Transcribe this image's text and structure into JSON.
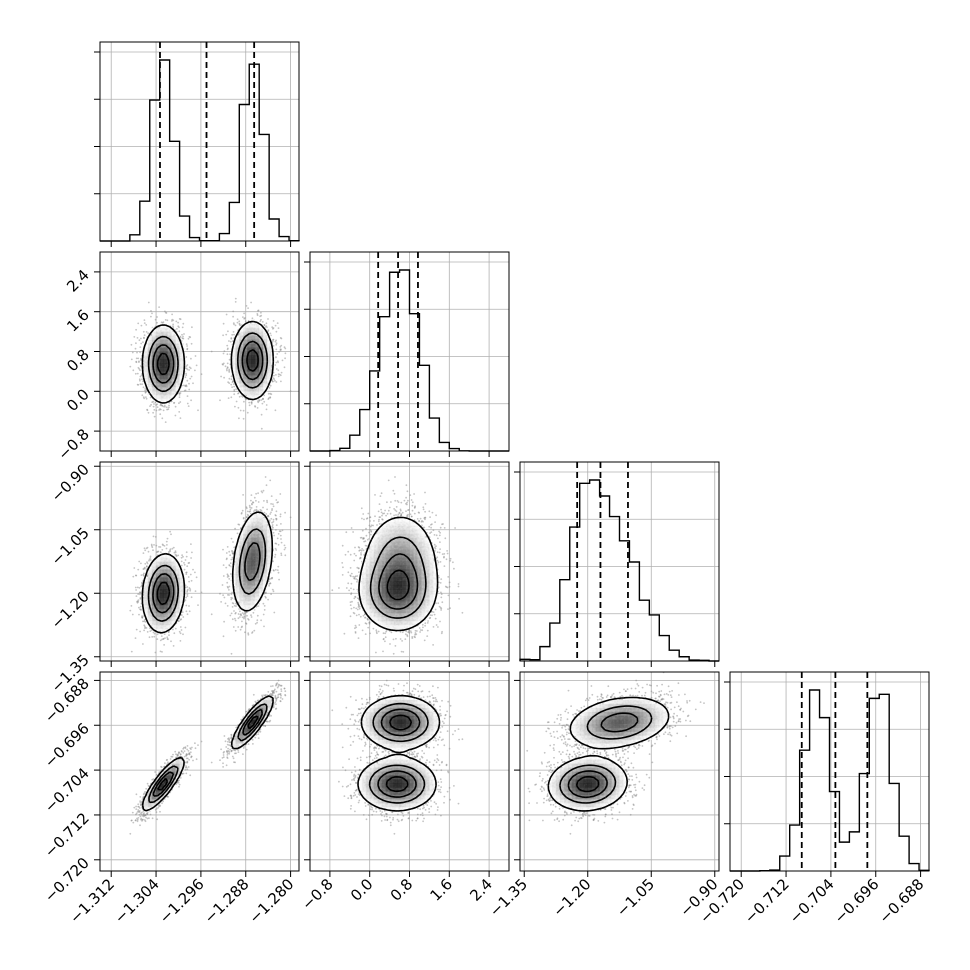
{
  "chart_data": {
    "type": "corner",
    "grid": true,
    "colors": {
      "points": "#8a8a8a",
      "lines": "#000000",
      "grid": "#b0b0b0",
      "background": "#ffffff"
    },
    "parameters": [
      {
        "range": [
          -1.314,
          -1.2785
        ],
        "ticks": [
          -1.312,
          -1.304,
          -1.296,
          -1.288,
          -1.28
        ],
        "tick_labels": [
          "−1.312",
          "−1.304",
          "−1.296",
          "−1.288",
          "−1.280"
        ],
        "quantiles": [
          -1.3033,
          -1.295,
          -1.2865
        ]
      },
      {
        "range": [
          -1.2,
          2.8
        ],
        "ticks": [
          -0.8,
          0.0,
          0.8,
          1.6,
          2.4
        ],
        "tick_labels": [
          "−0.8",
          "0.0",
          "0.8",
          "1.6",
          "2.4"
        ],
        "quantiles": [
          0.17,
          0.57,
          0.97
        ]
      },
      {
        "range": [
          -1.36,
          -0.89
        ],
        "ticks": [
          -1.35,
          -1.2,
          -1.05,
          -0.9
        ],
        "tick_labels": [
          "−1.35",
          "−1.20",
          "−1.05",
          "−0.90"
        ],
        "quantiles": [
          -1.225,
          -1.17,
          -1.105
        ]
      },
      {
        "range": [
          -0.722,
          -0.6865
        ],
        "ticks": [
          -0.72,
          -0.712,
          -0.704,
          -0.696,
          -0.688
        ],
        "tick_labels": [
          "−0.720",
          "−0.712",
          "−0.704",
          "−0.696",
          "−0.688"
        ],
        "quantiles": [
          -0.7092,
          -0.7032,
          -0.6975
        ]
      }
    ],
    "modes": [
      {
        "weight": 0.5,
        "mean": [
          -1.3027,
          0.55,
          -1.2,
          -0.7065
        ],
        "sd": [
          0.0018,
          0.38,
          0.045,
          0.0023
        ],
        "corr_0_3": 0.85,
        "corr_0_2": 0.1
      },
      {
        "weight": 0.5,
        "mean": [
          -1.2868,
          0.62,
          -1.125,
          -0.6955
        ],
        "sd": [
          0.0018,
          0.38,
          0.06,
          0.0023
        ],
        "corr_0_3": 0.85,
        "corr_0_2": 0.3
      }
    ],
    "samples_shown": 4000
  }
}
